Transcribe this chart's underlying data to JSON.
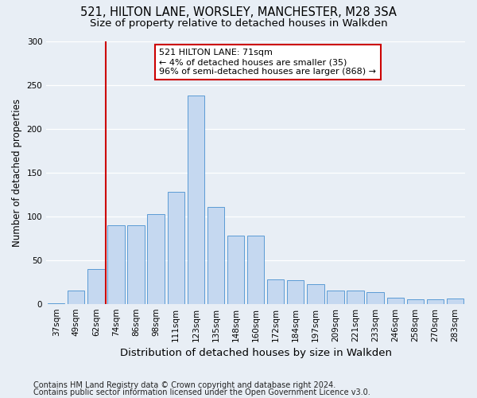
{
  "title1": "521, HILTON LANE, WORSLEY, MANCHESTER, M28 3SA",
  "title2": "Size of property relative to detached houses in Walkden",
  "xlabel": "Distribution of detached houses by size in Walkden",
  "ylabel": "Number of detached properties",
  "footnote1": "Contains HM Land Registry data © Crown copyright and database right 2024.",
  "footnote2": "Contains public sector information licensed under the Open Government Licence v3.0.",
  "categories": [
    "37sqm",
    "49sqm",
    "62sqm",
    "74sqm",
    "86sqm",
    "98sqm",
    "111sqm",
    "123sqm",
    "135sqm",
    "148sqm",
    "160sqm",
    "172sqm",
    "184sqm",
    "197sqm",
    "209sqm",
    "221sqm",
    "233sqm",
    "246sqm",
    "258sqm",
    "270sqm",
    "283sqm"
  ],
  "values": [
    1,
    15,
    40,
    90,
    90,
    102,
    128,
    238,
    111,
    78,
    78,
    28,
    27,
    22,
    15,
    15,
    13,
    7,
    5,
    5,
    6
  ],
  "bar_color": "#c5d8f0",
  "bar_edge_color": "#5b9bd5",
  "vline_color": "#cc0000",
  "vline_x": 2.5,
  "annotation_text": "521 HILTON LANE: 71sqm\n← 4% of detached houses are smaller (35)\n96% of semi-detached houses are larger (868) →",
  "annotation_box_facecolor": "#ffffff",
  "annotation_box_edgecolor": "#cc0000",
  "ylim": [
    0,
    300
  ],
  "yticks": [
    0,
    50,
    100,
    150,
    200,
    250,
    300
  ],
  "background_color": "#e8eef5",
  "title_fontsize": 10.5,
  "subtitle_fontsize": 9.5,
  "axis_label_fontsize": 8.5,
  "tick_fontsize": 7.5,
  "footnote_fontsize": 7.0
}
